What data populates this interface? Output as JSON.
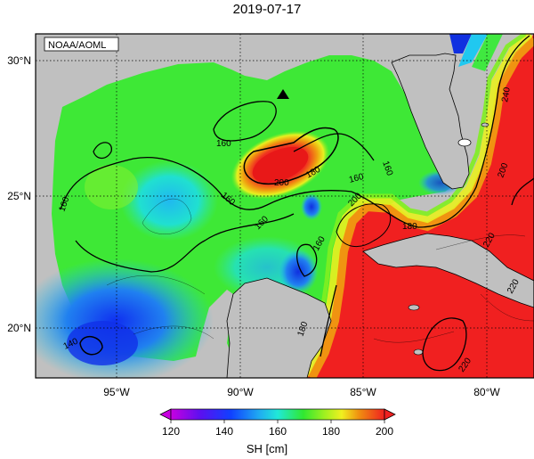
{
  "title": "2019-07-17",
  "credit": "NOAA/AOML",
  "axes": {
    "lon_ticks": [
      "95°W",
      "90°W",
      "85°W",
      "80°W"
    ],
    "lat_ticks": [
      "30°N",
      "25°N",
      "20°N"
    ]
  },
  "contour_labels": [
    "160",
    "160",
    "160",
    "160",
    "160",
    "160",
    "180",
    "200",
    "180",
    "160",
    "180",
    "200",
    "200",
    "220",
    "220",
    "220",
    "240",
    "140"
  ],
  "colorbar": {
    "label": "SH [cm]",
    "ticks": [
      "120",
      "140",
      "160",
      "180",
      "200"
    ],
    "range": [
      120,
      200
    ]
  },
  "colors": {
    "land": "#c0c0c0",
    "ocean_base": "#38e830",
    "warm_core": "#f02020",
    "cold": "#2050f0"
  },
  "marker": {
    "icon": "triangle-up"
  }
}
